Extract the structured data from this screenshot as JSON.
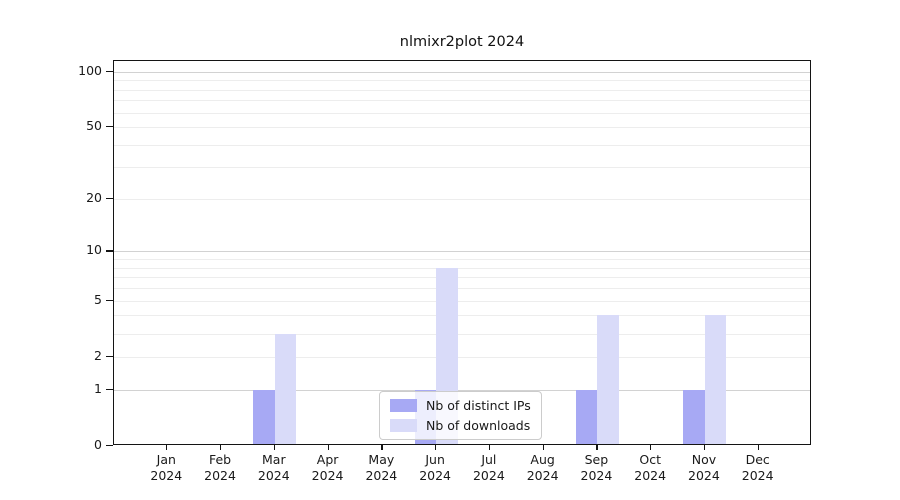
{
  "chart_data": {
    "type": "bar",
    "title": "nlmixr2plot 2024",
    "categories": [
      "Jan",
      "Feb",
      "Mar",
      "Apr",
      "May",
      "Jun",
      "Jul",
      "Aug",
      "Sep",
      "Oct",
      "Nov",
      "Dec"
    ],
    "year": "2024",
    "series": [
      {
        "name": "Nb of distinct IPs",
        "color": "#a7a9f4",
        "values": [
          0,
          0,
          1,
          0,
          0,
          1,
          0,
          0,
          1,
          0,
          1,
          0
        ]
      },
      {
        "name": "Nb of downloads",
        "color": "#d9dbf9",
        "values": [
          0,
          0,
          3,
          0,
          0,
          8,
          0,
          0,
          4,
          0,
          4,
          0
        ]
      }
    ],
    "yscale": "log1p",
    "ylim": [
      0,
      100
    ],
    "ytick_labels": [
      0,
      1,
      2,
      5,
      10,
      20,
      50,
      100
    ],
    "major_gridlines": [
      1,
      10,
      100
    ],
    "minor_gridlines": [
      2,
      3,
      4,
      5,
      6,
      7,
      8,
      9,
      20,
      30,
      40,
      50,
      60,
      70,
      80,
      90
    ],
    "grid": true,
    "legend_position": "lower center",
    "bar_width": 21.5,
    "colors": {
      "major_grid": "#d2d2d2",
      "minor_grid": "#ededed",
      "axis": "#141414",
      "background": "#ffffff"
    }
  }
}
